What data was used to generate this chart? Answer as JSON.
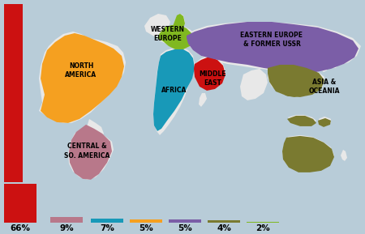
{
  "regions": [
    {
      "name": "Middle East",
      "pct": 66,
      "bar_color": "#cc1111"
    },
    {
      "name": "Central &\nSo. America",
      "pct": 9,
      "bar_color": "#b8788a"
    },
    {
      "name": "Africa",
      "pct": 7,
      "bar_color": "#1899b8"
    },
    {
      "name": "North America",
      "pct": 5,
      "bar_color": "#f5a020"
    },
    {
      "name": "Eastern Europe\n& Former USSR",
      "pct": 5,
      "bar_color": "#7b5ea7"
    },
    {
      "name": "Asia &\nOceania",
      "pct": 4,
      "bar_color": "#7a7a30"
    },
    {
      "name": "Western\nEurope",
      "pct": 2,
      "bar_color": "#80b820"
    }
  ],
  "bar_labels": [
    "66%",
    "9%",
    "7%",
    "5%",
    "5%",
    "4%",
    "2%"
  ],
  "bg_color": "#b8ccd8",
  "land_color": "#e8e8e8",
  "vertical_bar_color": "#cc1111",
  "na_color": "#f5a020",
  "sa_color": "#b8788a",
  "we_color": "#80b820",
  "af_color": "#1899b8",
  "me_color": "#cc1111",
  "eu_color": "#7b5ea7",
  "ao_color": "#7a7a30"
}
